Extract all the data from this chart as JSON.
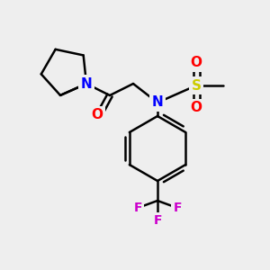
{
  "background_color": "#eeeeee",
  "bond_color": "#000000",
  "atom_colors": {
    "N": "#0000ff",
    "O": "#ff0000",
    "S": "#cccc00",
    "F": "#cc00cc",
    "C": "#000000"
  },
  "figsize": [
    3.0,
    3.0
  ],
  "dpi": 100
}
